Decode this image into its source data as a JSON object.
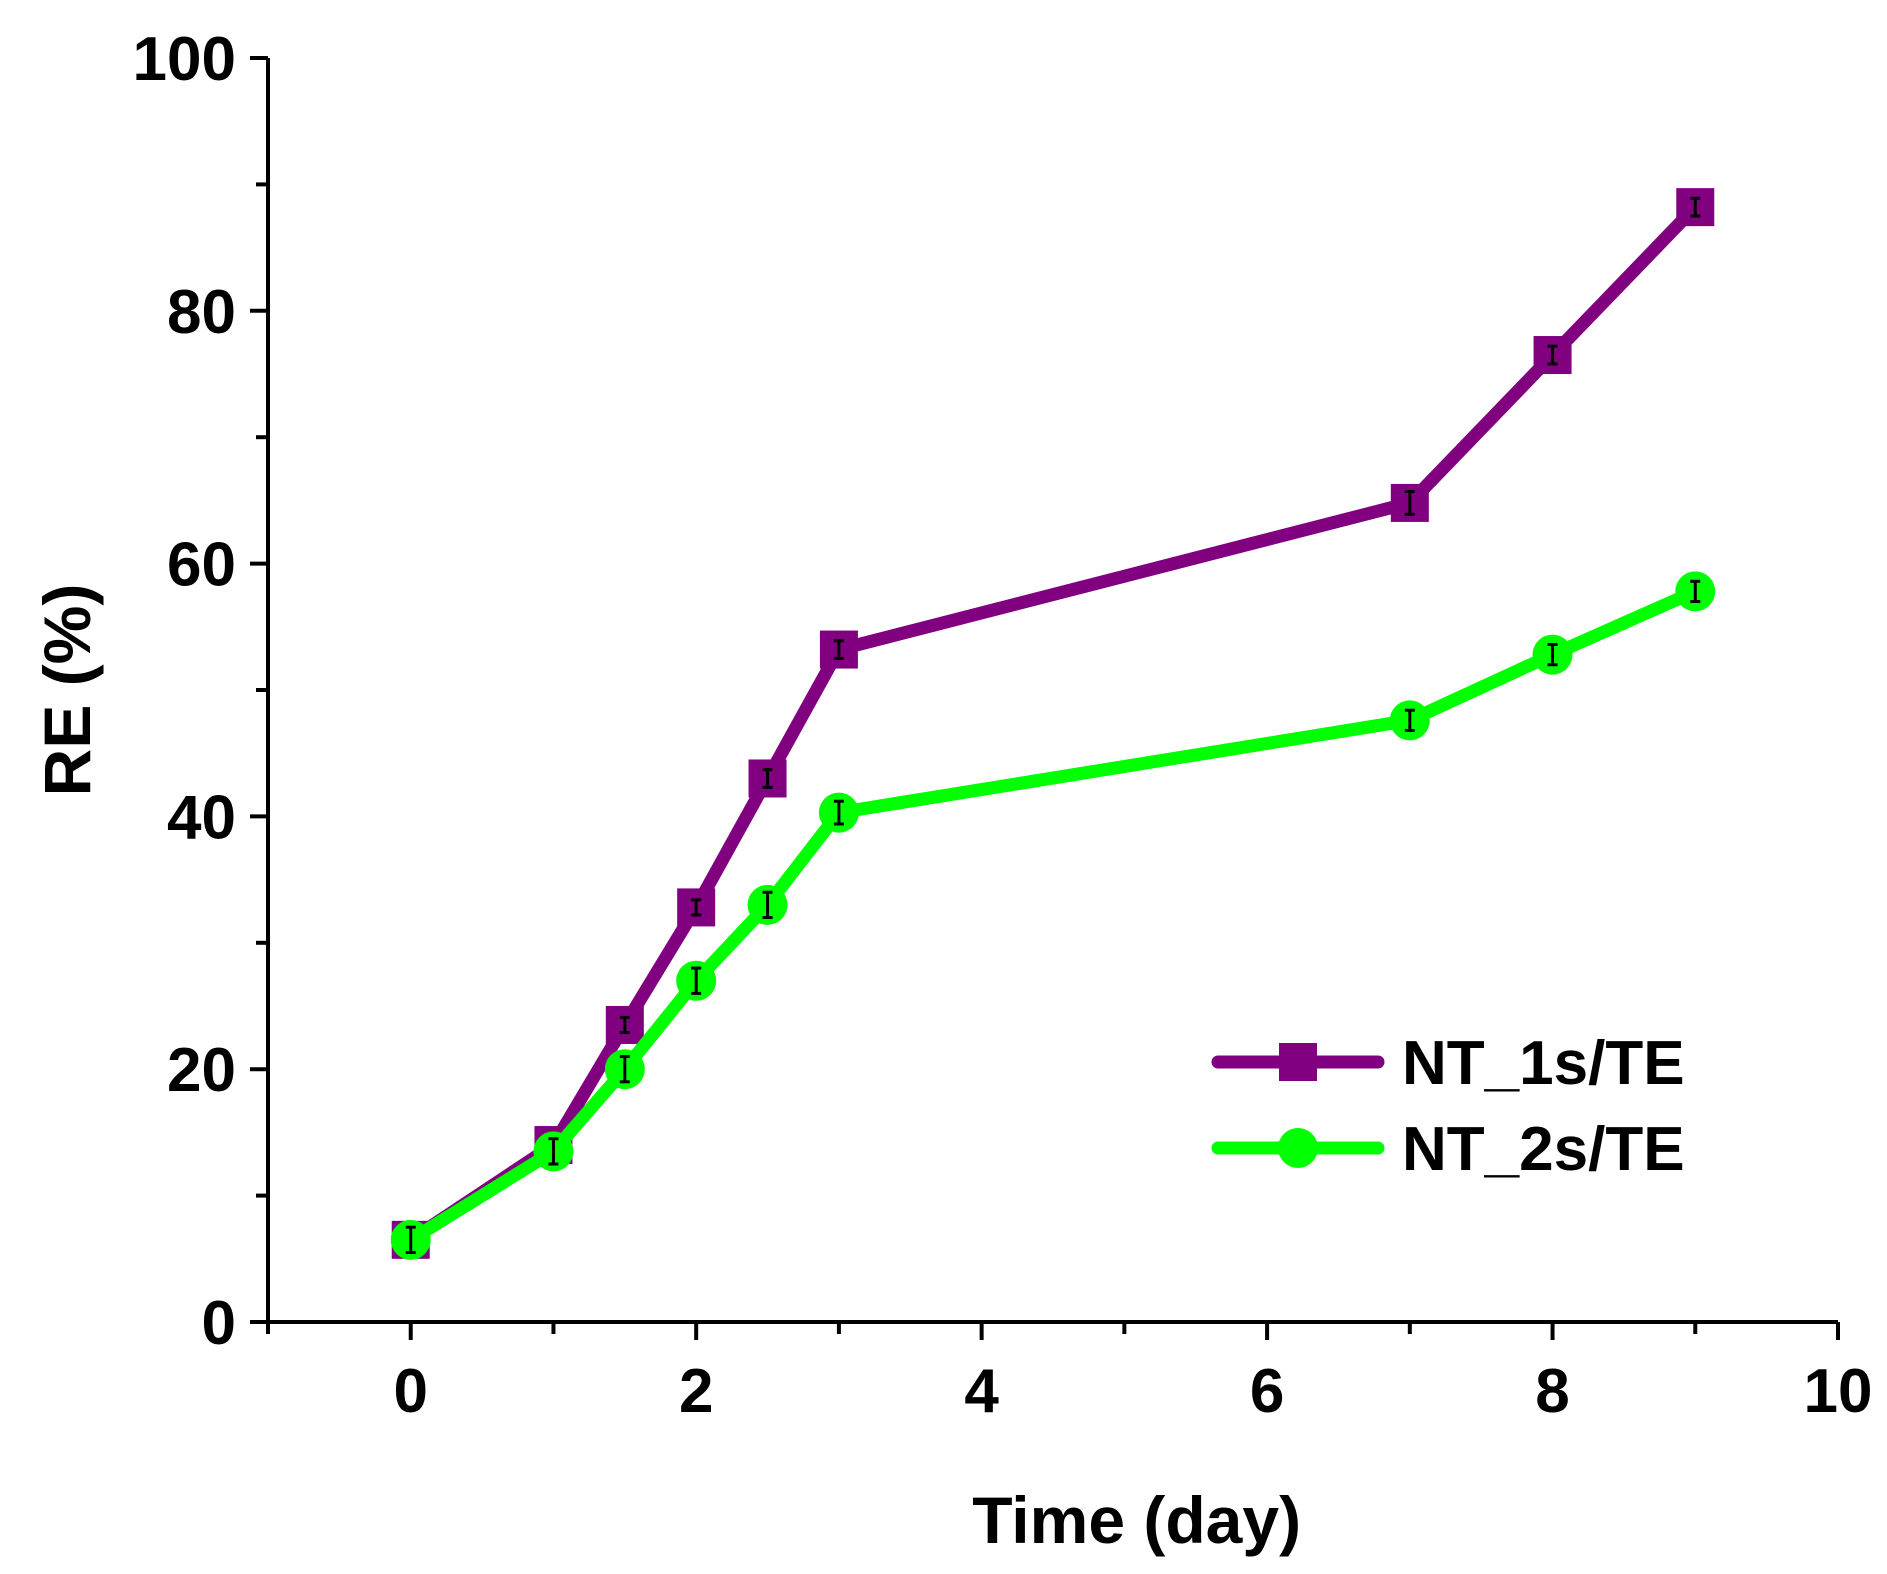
{
  "chart_data": {
    "type": "line",
    "title": "",
    "xlabel": "Time (day)",
    "ylabel": "RE (%)",
    "xlim": [
      -1,
      10
    ],
    "ylim": [
      0,
      100
    ],
    "xticks": [
      0,
      2,
      4,
      6,
      8,
      10
    ],
    "yticks": [
      0,
      20,
      40,
      60,
      80,
      100
    ],
    "grid": false,
    "legend_position": "bottom-right",
    "series": [
      {
        "name": "NT_1s/TE",
        "color": "#800080",
        "marker": "square",
        "x": [
          0,
          1,
          1.5,
          2,
          2.5,
          3,
          7,
          8,
          9
        ],
        "y": [
          6.5,
          14.0,
          23.5,
          32.8,
          43.0,
          53.2,
          64.8,
          76.5,
          88.2
        ],
        "error": [
          0.8,
          0.8,
          0.6,
          0.6,
          0.7,
          0.7,
          0.9,
          0.7,
          0.7
        ]
      },
      {
        "name": "NT_2s/TE",
        "color": "#00ff00",
        "marker": "circle",
        "x": [
          0,
          1,
          1.5,
          2,
          2.5,
          3,
          7,
          8,
          9
        ],
        "y": [
          6.5,
          13.5,
          20.0,
          27.0,
          33.0,
          40.3,
          47.6,
          52.8,
          57.8
        ],
        "error": [
          1.0,
          1.0,
          1.0,
          1.0,
          1.0,
          0.9,
          0.8,
          0.8,
          0.8
        ]
      }
    ]
  }
}
